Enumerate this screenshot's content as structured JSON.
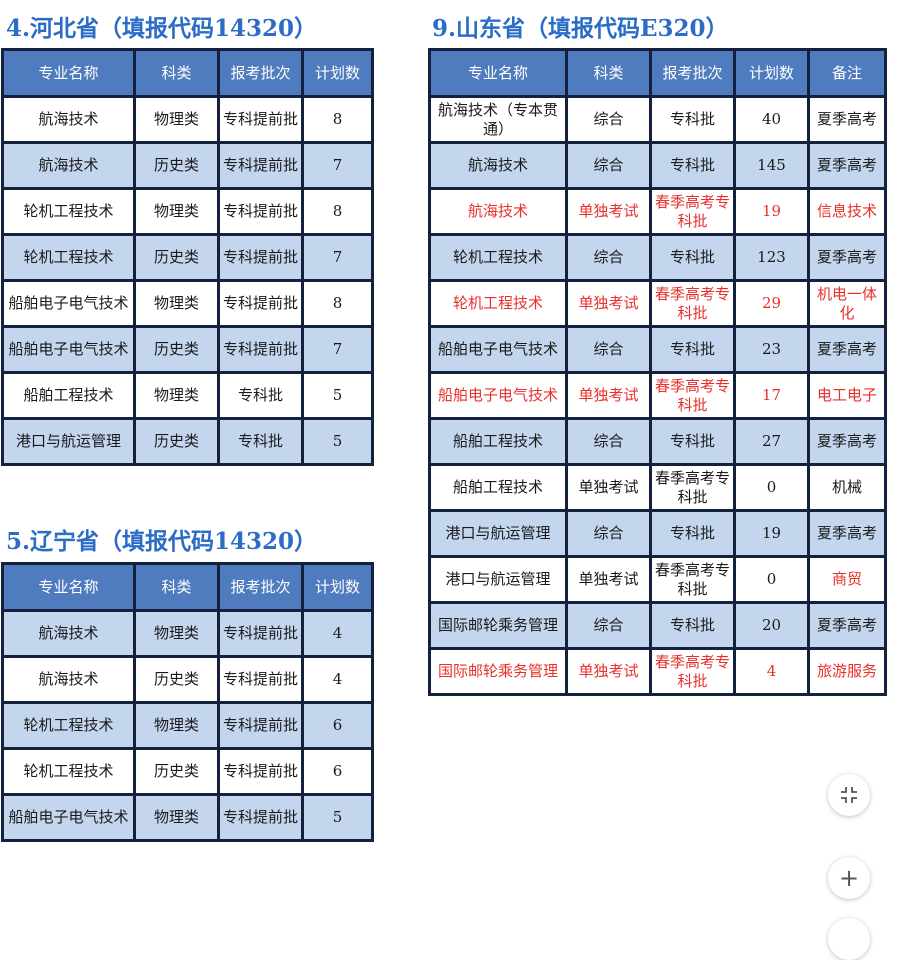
{
  "hebei": {
    "title": "4.河北省（填报代码14320）",
    "headers": [
      "专业名称",
      "科类",
      "报考批次",
      "计划数"
    ],
    "rows": [
      [
        "航海技术",
        "物理类",
        "专科提前批",
        "8"
      ],
      [
        "航海技术",
        "历史类",
        "专科提前批",
        "7"
      ],
      [
        "轮机工程技术",
        "物理类",
        "专科提前批",
        "8"
      ],
      [
        "轮机工程技术",
        "历史类",
        "专科提前批",
        "7"
      ],
      [
        "船舶电子电气技术",
        "物理类",
        "专科提前批",
        "8"
      ],
      [
        "船舶电子电气技术",
        "历史类",
        "专科提前批",
        "7"
      ],
      [
        "船舶工程技术",
        "物理类",
        "专科批",
        "5"
      ],
      [
        "港口与航运管理",
        "历史类",
        "专科批",
        "5"
      ]
    ]
  },
  "liaoning": {
    "title": "5.辽宁省（填报代码14320）",
    "headers": [
      "专业名称",
      "科类",
      "报考批次",
      "计划数"
    ],
    "rows": [
      [
        "航海技术",
        "物理类",
        "专科提前批",
        "4"
      ],
      [
        "航海技术",
        "历史类",
        "专科提前批",
        "4"
      ],
      [
        "轮机工程技术",
        "物理类",
        "专科提前批",
        "6"
      ],
      [
        "轮机工程技术",
        "历史类",
        "专科提前批",
        "6"
      ],
      [
        "船舶电子电气技术",
        "物理类",
        "专科提前批",
        "5"
      ]
    ]
  },
  "shandong": {
    "title": "9.山东省（填报代码E320）",
    "headers": [
      "专业名称",
      "科类",
      "报考批次",
      "计划数",
      "备注"
    ],
    "rows": [
      [
        "航海技术（专本贯通）",
        "综合",
        "专科批",
        "40",
        "夏季高考"
      ],
      [
        "航海技术",
        "综合",
        "专科批",
        "145",
        "夏季高考"
      ],
      [
        "航海技术",
        "单独考试",
        "春季高考专科批",
        "19",
        "信息技术"
      ],
      [
        "轮机工程技术",
        "综合",
        "专科批",
        "123",
        "夏季高考"
      ],
      [
        "轮机工程技术",
        "单独考试",
        "春季高考专科批",
        "29",
        "机电一体化"
      ],
      [
        "船舶电子电气技术",
        "综合",
        "专科批",
        "23",
        "夏季高考"
      ],
      [
        "船舶电子电气技术",
        "单独考试",
        "春季高考专科批",
        "17",
        "电工电子"
      ],
      [
        "船舶工程技术",
        "综合",
        "专科批",
        "27",
        "夏季高考"
      ],
      [
        "船舶工程技术",
        "单独考试",
        "春季高考专科批",
        "0",
        "机械"
      ],
      [
        "港口与航运管理",
        "综合",
        "专科批",
        "19",
        "夏季高考"
      ],
      [
        "港口与航运管理",
        "单独考试",
        "春季高考专科批",
        "0",
        "商贸"
      ],
      [
        "国际邮轮乘务管理",
        "综合",
        "专科批",
        "20",
        "夏季高考"
      ],
      [
        "国际邮轮乘务管理",
        "单独考试",
        "春季高考专科批",
        "4",
        "旅游服务"
      ]
    ]
  },
  "floating_buttons": {
    "collapse_icon": "compress-icon",
    "zoom_in_icon": "plus-icon",
    "zoom_in_label": "+"
  }
}
